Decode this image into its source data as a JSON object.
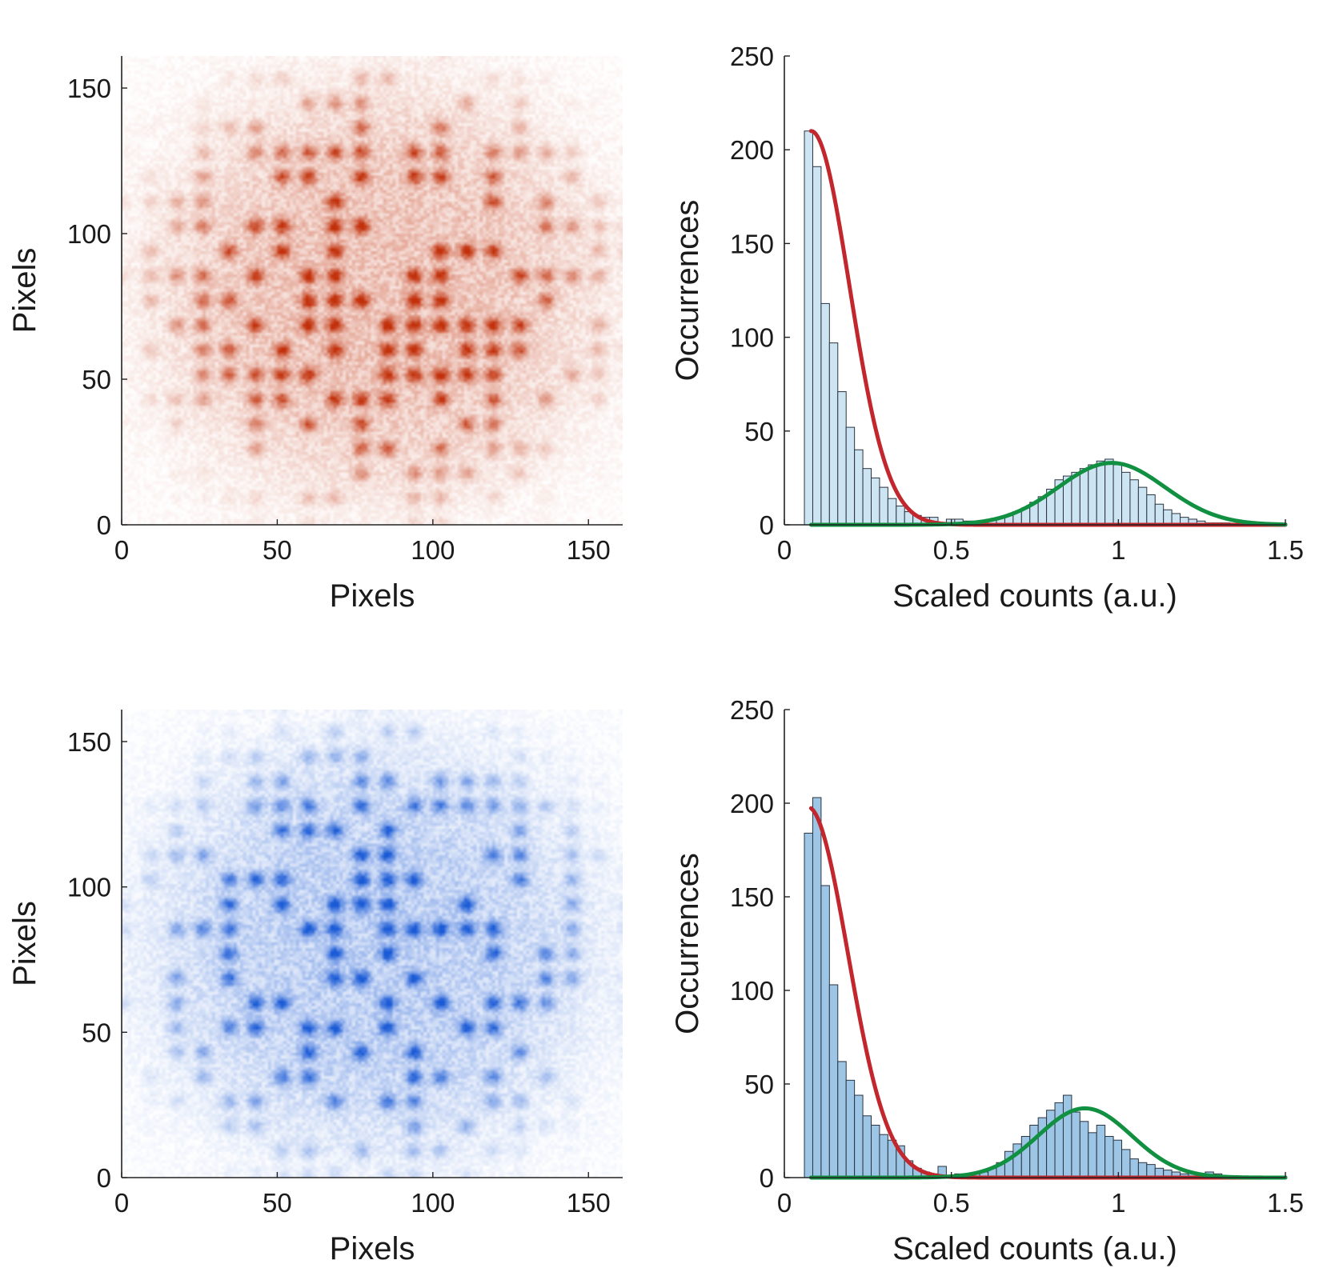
{
  "chart_data": [
    {
      "type": "heatmap",
      "xlabel": "Pixels",
      "ylabel": "Pixels",
      "xlim": [
        0,
        161
      ],
      "ylim": [
        0,
        161
      ],
      "xticks": [
        0,
        50,
        100,
        150
      ],
      "yticks": [
        0,
        50,
        100,
        150
      ],
      "colormap": [
        "#ffffff",
        "#c2300a"
      ],
      "description_values": {
        "cloud_center": [
          82,
          80
        ],
        "cloud_radius": 70,
        "site_period": 8.5
      }
    },
    {
      "type": "bar",
      "xlabel": "Scaled counts (a.u.)",
      "ylabel": "Occurrences",
      "xlim": [
        0,
        1.5
      ],
      "ylim": [
        0,
        250
      ],
      "xticks": [
        0,
        0.5,
        1,
        1.5
      ],
      "xtick_labels": [
        "0",
        "0.5",
        "1",
        "1.5"
      ],
      "yticks": [
        0,
        50,
        100,
        150,
        200,
        250
      ],
      "bar_color": "#cde4f2",
      "bin_start": 0.06,
      "bin_width": 0.025,
      "values": [
        210,
        191,
        118,
        97,
        71,
        52,
        40,
        30,
        25,
        20,
        14,
        10,
        7,
        5,
        4,
        4,
        0,
        3,
        3,
        2,
        2,
        2,
        3,
        4,
        5,
        7,
        9,
        12,
        15,
        19,
        24,
        26,
        28,
        30,
        32,
        34,
        35,
        32,
        28,
        24,
        20,
        16,
        11,
        8,
        6,
        4,
        3,
        2,
        1,
        1,
        1,
        0,
        0,
        0,
        0,
        0,
        0,
        0
      ],
      "fits": [
        {
          "color": "#c1272d",
          "type": "gaussian",
          "amplitude": 210,
          "mean": 0.08,
          "sigma": 0.115,
          "x_range": [
            0.08,
            1.5
          ]
        },
        {
          "color": "#109040",
          "type": "gaussian",
          "amplitude": 33,
          "mean": 0.98,
          "sigma": 0.16,
          "x_range": [
            0.08,
            1.5
          ]
        }
      ]
    },
    {
      "type": "heatmap",
      "xlabel": "Pixels",
      "ylabel": "Pixels",
      "xlim": [
        0,
        161
      ],
      "ylim": [
        0,
        161
      ],
      "xticks": [
        0,
        50,
        100,
        150
      ],
      "yticks": [
        0,
        50,
        100,
        150
      ],
      "colormap": [
        "#ffffff",
        "#1a5ad6"
      ],
      "description_values": {
        "cloud_center": [
          80,
          78
        ],
        "cloud_radius": 70,
        "site_period": 8.5
      }
    },
    {
      "type": "bar",
      "xlabel": "Scaled counts (a.u.)",
      "ylabel": "Occurrences",
      "xlim": [
        0,
        1.5
      ],
      "ylim": [
        0,
        250
      ],
      "xticks": [
        0,
        0.5,
        1,
        1.5
      ],
      "xtick_labels": [
        "0",
        "0.5",
        "1",
        "1.5"
      ],
      "yticks": [
        0,
        50,
        100,
        150,
        200,
        250
      ],
      "bar_color": "#9dc6e6",
      "bin_start": 0.06,
      "bin_width": 0.025,
      "values": [
        184,
        203,
        156,
        103,
        62,
        52,
        44,
        33,
        28,
        23,
        20,
        17,
        9,
        5,
        3,
        2,
        6,
        1,
        2,
        1,
        2,
        3,
        5,
        8,
        14,
        18,
        22,
        28,
        32,
        36,
        40,
        44,
        35,
        30,
        24,
        28,
        22,
        20,
        15,
        10,
        8,
        7,
        5,
        4,
        3,
        2,
        3,
        2,
        3,
        2,
        1,
        1,
        0,
        0,
        0,
        0,
        0,
        0
      ],
      "fits": [
        {
          "color": "#c1272d",
          "type": "gaussian",
          "amplitude": 198,
          "mean": 0.07,
          "sigma": 0.12,
          "x_range": [
            0.08,
            1.5
          ]
        },
        {
          "color": "#109040",
          "type": "gaussian",
          "amplitude": 37,
          "mean": 0.9,
          "sigma": 0.14,
          "x_range": [
            0.08,
            1.5
          ]
        }
      ]
    }
  ]
}
